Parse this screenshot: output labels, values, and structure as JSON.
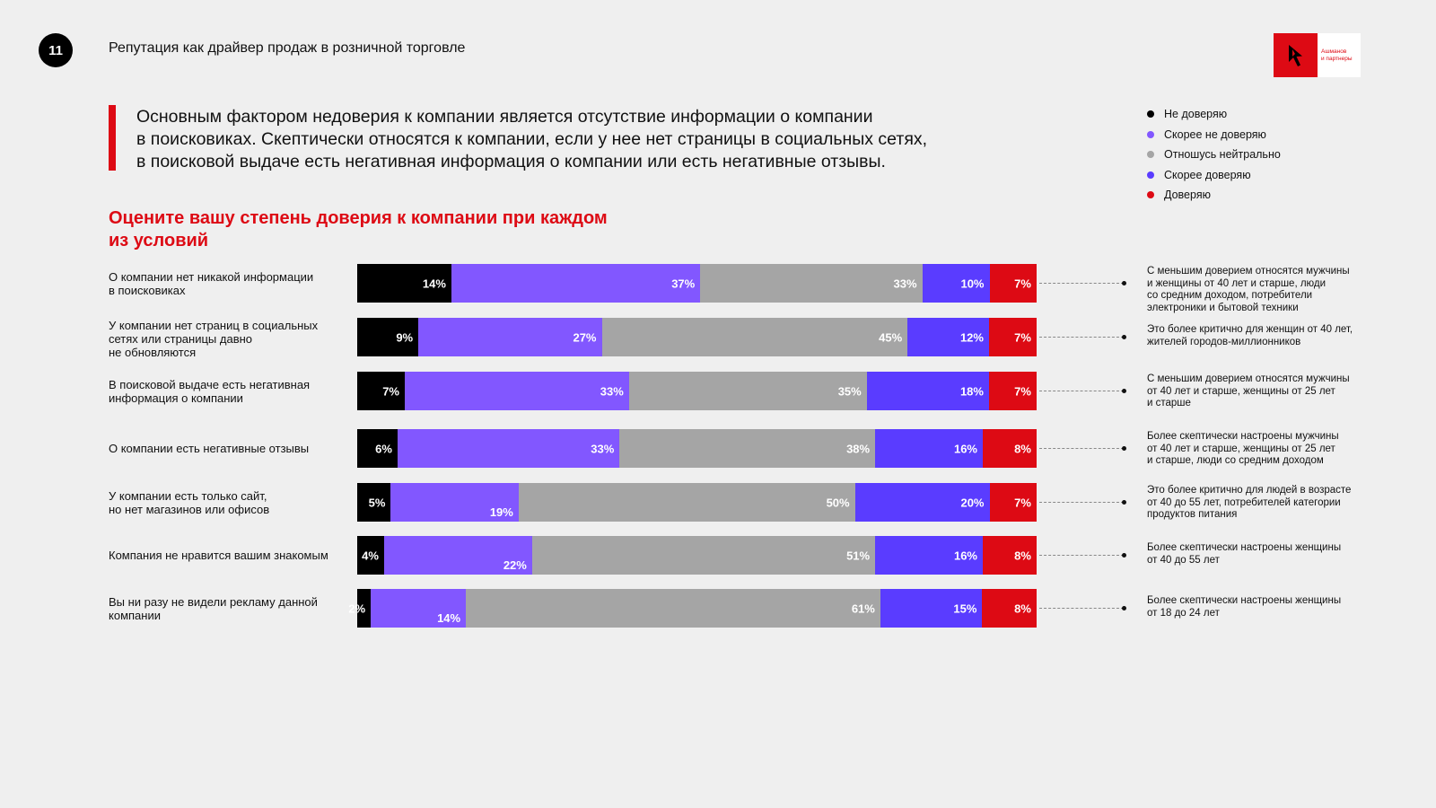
{
  "header": {
    "page_number": "11",
    "title": "Репутация как драйвер продаж в розничной торговле",
    "logo_text_line1": "Ашманов",
    "logo_text_line2": "и партнеры"
  },
  "lead": {
    "text": "Основным фактором недоверия к компании является отсутствие информации о компании в поисковиках. Скептически относятся к компании, если у нее нет страницы в социальных сетях, в поисковой выдаче есть негативная информация о компании или есть негативные отзывы.",
    "line1": "Основным фактором недоверия к компании является отсутствие информации о компании",
    "line2": "в поисковиках. Скептически относятся к компании, если у нее нет страницы в социальных сетях,",
    "line3": "в поисковой выдаче есть негативная информация о компании или есть негативные отзывы."
  },
  "colors": {
    "accent": "#dd0a14",
    "background": "#efefef"
  },
  "chart_data": {
    "type": "bar",
    "orientation": "horizontal",
    "stacked": true,
    "normalized": true,
    "title": "Оцените вашу степень доверия к компании при каждом из условий",
    "title_line1": "Оцените вашу степень доверия к компании при каждом",
    "title_line2": "из условий",
    "legend_position": "top-right",
    "xlim": [
      0,
      100
    ],
    "grid": false,
    "categories": [
      "О компании нет никакой информации в поисковиках",
      "У компании нет страниц в социальных сетях или страницы давно не обновляются",
      "В поисковой выдаче есть негативная информация о компании",
      "О компании есть негативные отзывы",
      "У компании есть только сайт, но нет магазинов или офисов",
      "Компания не нравится вашим знакомым",
      "Вы ни разу не видели рекламу данной компании"
    ],
    "category_lines": [
      [
        "О компании нет никакой информации",
        "в поисковиках"
      ],
      [
        "У компании нет страниц в социальных",
        "сетях или страницы давно",
        "не обновляются"
      ],
      [
        "В поисковой выдаче есть негативная",
        "информация о компании"
      ],
      [
        "О компании есть негативные отзывы"
      ],
      [
        "У компании есть только сайт,",
        "но нет магазинов или офисов"
      ],
      [
        "Компания не нравится вашим знакомым"
      ],
      [
        "Вы ни разу не видели рекламу данной",
        "компании"
      ]
    ],
    "series": [
      {
        "name": "Не доверяю",
        "color": "#000000",
        "values": [
          14,
          9,
          7,
          6,
          5,
          4,
          2
        ]
      },
      {
        "name": "Скорее не доверяю",
        "color": "#8257ff",
        "values": [
          37,
          27,
          33,
          33,
          19,
          22,
          14
        ]
      },
      {
        "name": "Отношусь нейтрально",
        "color": "#a5a5a5",
        "values": [
          33,
          45,
          35,
          38,
          50,
          51,
          61
        ]
      },
      {
        "name": "Скорее доверяю",
        "color": "#5a3cff",
        "values": [
          10,
          12,
          18,
          16,
          20,
          16,
          15
        ]
      },
      {
        "name": "Доверяю",
        "color": "#dd0a14",
        "values": [
          7,
          7,
          7,
          8,
          7,
          8,
          8
        ]
      }
    ],
    "annotations": [
      [
        "С меньшим доверием относятся мужчины",
        "и женщины от 40 лет и старше, люди",
        "со средним доходом, потребители",
        "электроники и бытовой техники"
      ],
      [
        "Это более критично для женщин от 40 лет,",
        "жителей городов-миллионников"
      ],
      [
        "С меньшим доверием относятся мужчины",
        "от 40 лет и старше, женщины от 25 лет",
        "и старше"
      ],
      [
        "Более скептически настроены мужчины",
        "от 40 лет и старше, женщины от 25 лет",
        "и старше, люди со средним доходом"
      ],
      [
        "Это более критично для людей в возрасте",
        "от 40 до 55 лет, потребителей категории",
        "продуктов питания"
      ],
      [
        "Более скептически настроены женщины",
        "от 40 до 55 лет"
      ],
      [
        "Более скептически настроены женщины",
        "от 18 до 24 лет"
      ]
    ]
  }
}
